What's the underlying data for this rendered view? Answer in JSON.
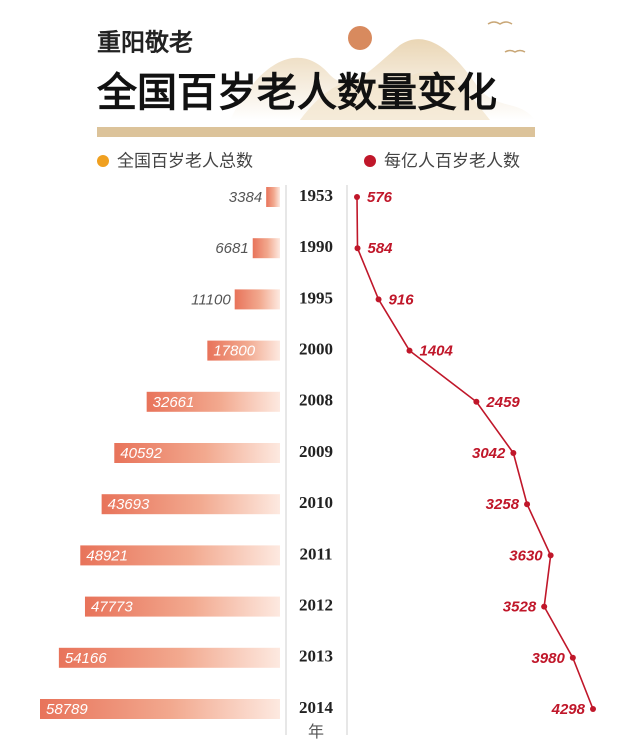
{
  "chart_data": {
    "type": "bar",
    "subtitle": "重阳敬老",
    "title": "全国百岁老人数量变化",
    "x_label": "年",
    "categories": [
      "1953",
      "1990",
      "1995",
      "2000",
      "2008",
      "2009",
      "2010",
      "2011",
      "2012",
      "2013",
      "2014"
    ],
    "series": [
      {
        "name": "全国百岁老人总数",
        "color": "#e8735a",
        "legend_color": "#f0a020",
        "values": [
          3384,
          6681,
          11100,
          17800,
          32661,
          40592,
          43693,
          48921,
          47773,
          54166,
          58789
        ]
      },
      {
        "name": "每亿人百岁老人数",
        "color": "#c0172a",
        "type": "line",
        "values": [
          576,
          584,
          916,
          1404,
          2459,
          3042,
          3258,
          3630,
          3528,
          3980,
          4298
        ]
      }
    ]
  }
}
